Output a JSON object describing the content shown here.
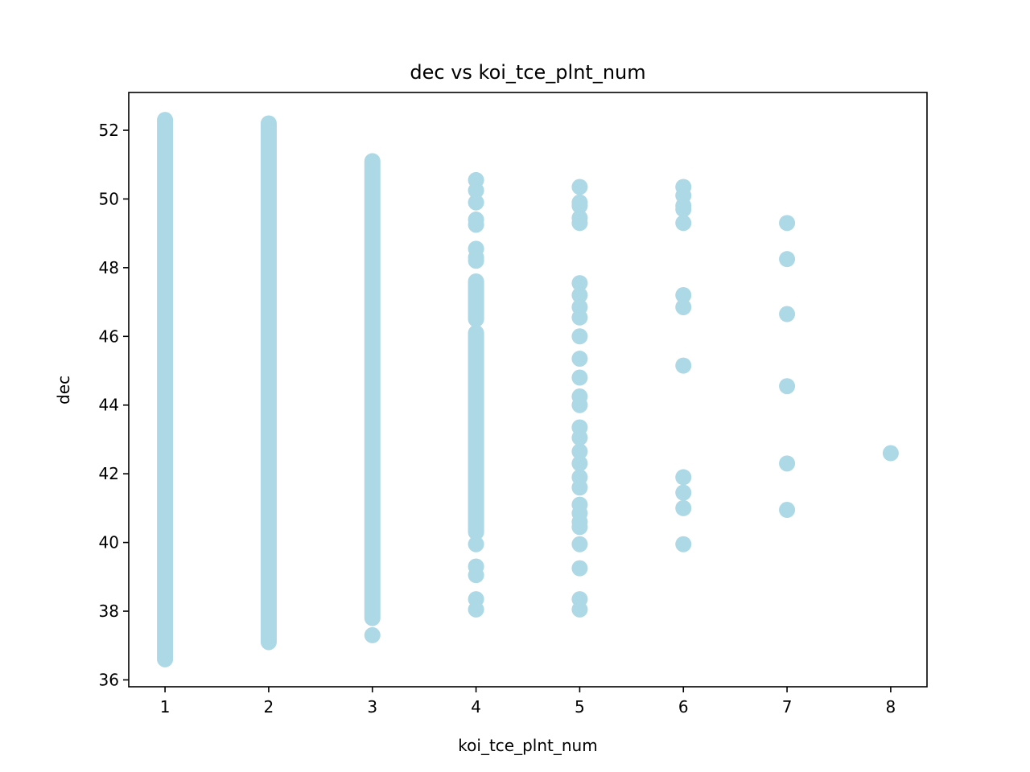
{
  "chart_data": {
    "type": "scatter",
    "title": "dec vs koi_tce_plnt_num",
    "xlabel": "koi_tce_plnt_num",
    "ylabel": "dec",
    "xlim": [
      0.65,
      8.35
    ],
    "ylim": [
      35.8,
      53.1
    ],
    "xticks": [
      1,
      2,
      3,
      4,
      5,
      6,
      7,
      8
    ],
    "yticks": [
      36,
      38,
      40,
      42,
      44,
      46,
      48,
      50,
      52
    ],
    "grid": false,
    "marker_color": "#add8e6",
    "series": [
      {
        "points": [
          {
            "x": 1,
            "y_range": [
              36.6,
              52.3
            ]
          },
          {
            "x": 2,
            "y_range": [
              37.1,
              52.2
            ]
          },
          {
            "x": 3,
            "y_range": [
              37.8,
              51.1
            ]
          },
          {
            "x": 3,
            "y": 37.3
          },
          {
            "x": 4,
            "y": 50.55
          },
          {
            "x": 4,
            "y": 50.25
          },
          {
            "x": 4,
            "y": 49.9
          },
          {
            "x": 4,
            "y": 49.4
          },
          {
            "x": 4,
            "y": 49.25
          },
          {
            "x": 4,
            "y": 48.55
          },
          {
            "x": 4,
            "y": 48.3
          },
          {
            "x": 4,
            "y": 48.2
          },
          {
            "x": 4,
            "y_range": [
              46.5,
              47.6
            ]
          },
          {
            "x": 4,
            "y_range": [
              40.3,
              46.1
            ]
          },
          {
            "x": 4,
            "y": 39.95
          },
          {
            "x": 4,
            "y": 39.3
          },
          {
            "x": 4,
            "y": 39.05
          },
          {
            "x": 4,
            "y": 38.35
          },
          {
            "x": 4,
            "y": 38.05
          },
          {
            "x": 5,
            "y": 50.35
          },
          {
            "x": 5,
            "y": 49.9
          },
          {
            "x": 5,
            "y": 49.8
          },
          {
            "x": 5,
            "y": 49.45
          },
          {
            "x": 5,
            "y": 49.3
          },
          {
            "x": 5,
            "y": 47.55
          },
          {
            "x": 5,
            "y": 47.2
          },
          {
            "x": 5,
            "y": 46.85
          },
          {
            "x": 5,
            "y": 46.55
          },
          {
            "x": 5,
            "y": 46.0
          },
          {
            "x": 5,
            "y": 45.35
          },
          {
            "x": 5,
            "y": 44.8
          },
          {
            "x": 5,
            "y": 44.25
          },
          {
            "x": 5,
            "y": 44.0
          },
          {
            "x": 5,
            "y": 43.35
          },
          {
            "x": 5,
            "y": 43.05
          },
          {
            "x": 5,
            "y": 42.65
          },
          {
            "x": 5,
            "y": 42.3
          },
          {
            "x": 5,
            "y": 41.9
          },
          {
            "x": 5,
            "y": 41.6
          },
          {
            "x": 5,
            "y": 41.1
          },
          {
            "x": 5,
            "y": 40.85
          },
          {
            "x": 5,
            "y": 40.6
          },
          {
            "x": 5,
            "y": 40.45
          },
          {
            "x": 5,
            "y": 39.95
          },
          {
            "x": 5,
            "y": 39.25
          },
          {
            "x": 5,
            "y": 38.35
          },
          {
            "x": 5,
            "y": 38.05
          },
          {
            "x": 6,
            "y": 50.35
          },
          {
            "x": 6,
            "y": 50.1
          },
          {
            "x": 6,
            "y": 49.8
          },
          {
            "x": 6,
            "y": 49.7
          },
          {
            "x": 6,
            "y": 49.3
          },
          {
            "x": 6,
            "y": 47.2
          },
          {
            "x": 6,
            "y": 46.85
          },
          {
            "x": 6,
            "y": 45.15
          },
          {
            "x": 6,
            "y": 41.9
          },
          {
            "x": 6,
            "y": 41.45
          },
          {
            "x": 6,
            "y": 41.0
          },
          {
            "x": 6,
            "y": 39.95
          },
          {
            "x": 7,
            "y": 49.3
          },
          {
            "x": 7,
            "y": 48.25
          },
          {
            "x": 7,
            "y": 46.65
          },
          {
            "x": 7,
            "y": 44.55
          },
          {
            "x": 7,
            "y": 42.3
          },
          {
            "x": 7,
            "y": 40.95
          },
          {
            "x": 8,
            "y": 42.6
          }
        ]
      }
    ]
  }
}
